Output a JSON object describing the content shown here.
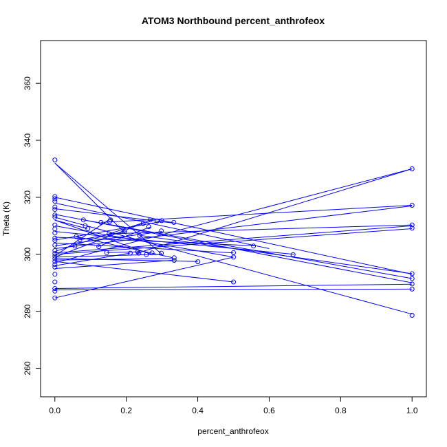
{
  "chart_data": {
    "type": "line",
    "title": "ATOM3 Northbound percent_anthrofeox",
    "xlabel": "percent_anthrofeox",
    "ylabel": "Theta (K)",
    "xlim": [
      -0.04,
      1.04
    ],
    "ylim": [
      250,
      375
    ],
    "xticks": [
      0.0,
      0.2,
      0.4,
      0.6,
      0.8,
      1.0
    ],
    "xtick_labels": [
      "0.0",
      "0.2",
      "0.4",
      "0.6",
      "0.8",
      "1.0"
    ],
    "yticks": [
      260,
      280,
      300,
      320,
      340,
      360
    ],
    "ytick_labels": [
      "260",
      "280",
      "300",
      "320",
      "340",
      "360"
    ],
    "grid": false,
    "color": "#0000ff",
    "marker": "open-circle",
    "points": [
      [
        0.0,
        333.1
      ],
      [
        0.0,
        320.3
      ],
      [
        0.0,
        319.5
      ],
      [
        0.0,
        318.6
      ],
      [
        0.0,
        316.6
      ],
      [
        0.0,
        315.7
      ],
      [
        0.0,
        313.8
      ],
      [
        0.0,
        313.0
      ],
      [
        0.0,
        310.3
      ],
      [
        0.0,
        308.9
      ],
      [
        0.0,
        307.5
      ],
      [
        0.0,
        305.7
      ],
      [
        0.0,
        304.9
      ],
      [
        0.0,
        303.2
      ],
      [
        0.0,
        301.3
      ],
      [
        0.0,
        300.3
      ],
      [
        0.0,
        299.4
      ],
      [
        0.0,
        298.5
      ],
      [
        0.0,
        297.5
      ],
      [
        0.0,
        296.4
      ],
      [
        0.0,
        295.5
      ],
      [
        0.0,
        293.0
      ],
      [
        0.0,
        290.3
      ],
      [
        0.0,
        288.0
      ],
      [
        0.0,
        287.1
      ],
      [
        0.0,
        284.7
      ],
      [
        0.056,
        302.9
      ],
      [
        0.06,
        306.2
      ],
      [
        0.07,
        305.1
      ],
      [
        0.08,
        312.1
      ],
      [
        0.085,
        310.0
      ],
      [
        0.092,
        309.0
      ],
      [
        0.123,
        302.7
      ],
      [
        0.129,
        311.2
      ],
      [
        0.145,
        300.6
      ],
      [
        0.152,
        307.2
      ],
      [
        0.153,
        311.5
      ],
      [
        0.156,
        312.1
      ],
      [
        0.195,
        308.0
      ],
      [
        0.211,
        300.4
      ],
      [
        0.232,
        300.9
      ],
      [
        0.235,
        300.4
      ],
      [
        0.237,
        306.6
      ],
      [
        0.247,
        310.8
      ],
      [
        0.256,
        299.9
      ],
      [
        0.263,
        309.7
      ],
      [
        0.267,
        312.1
      ],
      [
        0.272,
        300.5
      ],
      [
        0.286,
        311.7
      ],
      [
        0.298,
        300.4
      ],
      [
        0.298,
        308.2
      ],
      [
        0.299,
        311.8
      ],
      [
        0.333,
        311.2
      ],
      [
        0.334,
        298.8
      ],
      [
        0.334,
        297.9
      ],
      [
        0.4,
        297.4
      ],
      [
        0.5,
        300.6
      ],
      [
        0.5,
        299.0
      ],
      [
        0.5,
        290.3
      ],
      [
        0.556,
        302.9
      ],
      [
        0.667,
        299.9
      ],
      [
        1.0,
        330.0
      ],
      [
        1.0,
        317.2
      ],
      [
        1.0,
        310.3
      ],
      [
        1.0,
        309.2
      ],
      [
        1.0,
        293.2
      ],
      [
        1.0,
        291.5
      ],
      [
        1.0,
        289.6
      ],
      [
        1.0,
        287.8
      ],
      [
        1.0,
        278.6
      ]
    ],
    "segments": [
      [
        [
          0.0,
          332.0
        ],
        [
          0.3,
          300.0
        ]
      ],
      [
        [
          0.0,
          332.0
        ],
        [
          0.2,
          307.0
        ]
      ],
      [
        [
          0.0,
          320.0
        ],
        [
          1.0,
          293.0
        ]
      ],
      [
        [
          0.0,
          318.0
        ],
        [
          0.6,
          302.0
        ]
      ],
      [
        [
          0.0,
          316.0
        ],
        [
          0.33,
          311.0
        ]
      ],
      [
        [
          0.0,
          314.0
        ],
        [
          1.0,
          290.0
        ]
      ],
      [
        [
          0.0,
          313.0
        ],
        [
          1.0,
          279.0
        ]
      ],
      [
        [
          0.0,
          312.0
        ],
        [
          0.27,
          300.0
        ]
      ],
      [
        [
          0.0,
          310.0
        ],
        [
          0.5,
          299.0
        ]
      ],
      [
        [
          0.0,
          308.0
        ],
        [
          0.67,
          300.0
        ]
      ],
      [
        [
          0.0,
          306.0
        ],
        [
          0.56,
          303.0
        ]
      ],
      [
        [
          0.0,
          305.0
        ],
        [
          0.3,
          311.5
        ]
      ],
      [
        [
          0.0,
          304.0
        ],
        [
          0.5,
          300.5
        ]
      ],
      [
        [
          0.0,
          303.0
        ],
        [
          0.3,
          308.0
        ]
      ],
      [
        [
          0.0,
          302.0
        ],
        [
          1.0,
          317.0
        ]
      ],
      [
        [
          0.0,
          301.0
        ],
        [
          0.27,
          312.0
        ]
      ],
      [
        [
          0.0,
          300.5
        ],
        [
          1.0,
          310.0
        ]
      ],
      [
        [
          0.0,
          300.0
        ],
        [
          1.0,
          309.0
        ]
      ],
      [
        [
          0.0,
          299.5
        ],
        [
          0.15,
          312.0
        ]
      ],
      [
        [
          0.0,
          299.0
        ],
        [
          0.25,
          311.0
        ]
      ],
      [
        [
          0.0,
          298.5
        ],
        [
          0.4,
          297.5
        ]
      ],
      [
        [
          0.0,
          298.0
        ],
        [
          0.33,
          298.5
        ]
      ],
      [
        [
          0.0,
          297.5
        ],
        [
          0.5,
          290.3
        ]
      ],
      [
        [
          0.0,
          297.0
        ],
        [
          1.0,
          330.0
        ]
      ],
      [
        [
          0.0,
          296.0
        ],
        [
          0.21,
          300.4
        ]
      ],
      [
        [
          0.0,
          295.0
        ],
        [
          0.33,
          297.9
        ]
      ],
      [
        [
          0.0,
          288.0
        ],
        [
          1.0,
          289.5
        ]
      ],
      [
        [
          0.0,
          287.5
        ],
        [
          1.0,
          287.8
        ]
      ],
      [
        [
          0.0,
          284.7
        ],
        [
          0.5,
          299.0
        ]
      ],
      [
        [
          0.13,
          311.2
        ],
        [
          1.0,
          317.2
        ]
      ],
      [
        [
          0.08,
          312.1
        ],
        [
          1.0,
          291.5
        ]
      ],
      [
        [
          0.15,
          307.2
        ],
        [
          1.0,
          310.3
        ]
      ],
      [
        [
          0.24,
          306.6
        ],
        [
          1.0,
          293.2
        ]
      ],
      [
        [
          0.0,
          312.0
        ],
        [
          0.09,
          309.0
        ]
      ],
      [
        [
          0.06,
          306.2
        ],
        [
          0.33,
          298.8
        ]
      ],
      [
        [
          0.07,
          305.1
        ],
        [
          0.2,
          308.0
        ]
      ],
      [
        [
          0.12,
          302.7
        ],
        [
          0.27,
          309.7
        ]
      ],
      [
        [
          0.145,
          300.6
        ],
        [
          0.24,
          300.9
        ]
      ],
      [
        [
          0.0,
          299.0
        ],
        [
          0.3,
          300.0
        ]
      ],
      [
        [
          0.23,
          300.4
        ],
        [
          1.0,
          330.0
        ]
      ]
    ]
  }
}
